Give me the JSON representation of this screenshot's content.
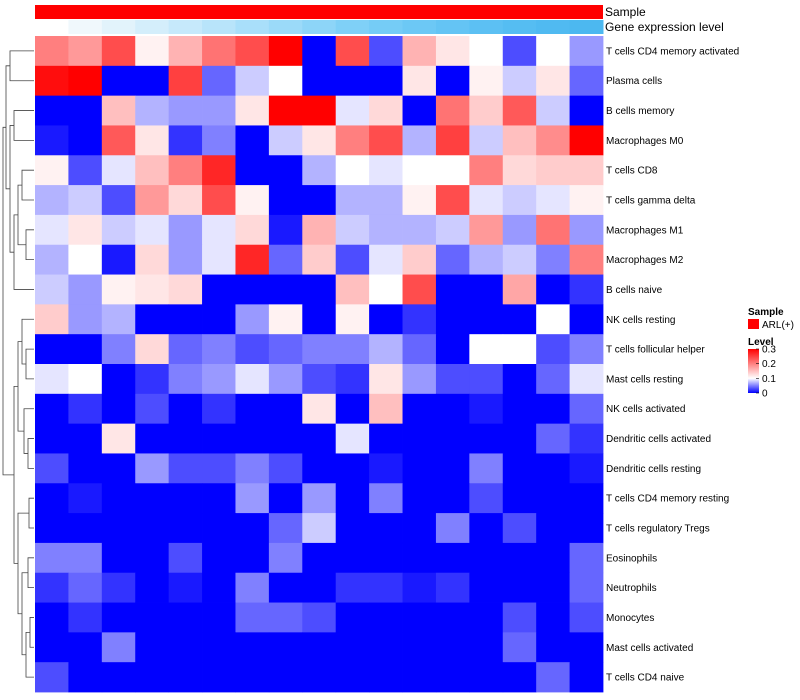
{
  "chart_data": {
    "type": "heatmap",
    "annotation_tracks": [
      {
        "label": "Sample",
        "color": "#ff0000"
      },
      {
        "label": "Gene expression level",
        "colors": [
          "#ffffff",
          "#f0f8fc",
          "#e2f3fb",
          "#d4eefb",
          "#c6e9fb",
          "#b8e4fa",
          "#a9dffa",
          "#9bdaf9",
          "#8dd5f8",
          "#7fd0f7",
          "#75ccf6",
          "#6cc8f5",
          "#64c4f4",
          "#5cc0f3",
          "#55bdf2",
          "#50baf1",
          "#4cb8f0"
        ]
      }
    ],
    "rows": [
      "T cells CD4 memory activated",
      "Plasma cells",
      "B cells memory",
      "Macrophages M0",
      "T cells CD8",
      "T cells gamma delta",
      "Macrophages M1",
      "Macrophages M2",
      "B cells naive",
      "NK cells resting",
      "T cells follicular helper",
      "Mast cells resting",
      "NK cells activated",
      "Dendritic cells activated",
      "Dendritic cells resting",
      "T cells CD4 memory resting",
      "T cells regulatory  Tregs",
      "Eosinophils",
      "Neutrophils",
      "Monocytes",
      "Mast cells activated",
      "T cells CD4 naive"
    ],
    "values": [
      [
        0.2,
        0.18,
        0.24,
        0.11,
        0.16,
        0.21,
        0.24,
        0.3,
        0.0,
        0.24,
        0.03,
        0.16,
        0.12,
        0.1,
        0.03,
        0.1,
        0.06
      ],
      [
        0.29,
        0.3,
        0.0,
        0.0,
        0.25,
        0.04,
        0.08,
        0.1,
        0.0,
        0.0,
        0.0,
        0.12,
        0.0,
        0.11,
        0.08,
        0.12,
        0.04
      ],
      [
        0.0,
        0.0,
        0.15,
        0.07,
        0.06,
        0.06,
        0.12,
        0.3,
        0.3,
        0.09,
        0.13,
        0.0,
        0.21,
        0.14,
        0.23,
        0.08,
        0.0
      ],
      [
        0.01,
        0.0,
        0.23,
        0.12,
        0.02,
        0.05,
        0.0,
        0.08,
        0.12,
        0.2,
        0.24,
        0.07,
        0.25,
        0.08,
        0.15,
        0.19,
        0.3
      ],
      [
        0.11,
        0.03,
        0.09,
        0.15,
        0.2,
        0.27,
        0.0,
        0.0,
        0.07,
        0.1,
        0.09,
        0.1,
        0.1,
        0.2,
        0.13,
        0.14,
        0.14
      ],
      [
        0.07,
        0.08,
        0.03,
        0.18,
        0.13,
        0.24,
        0.11,
        0.0,
        0.0,
        0.07,
        0.07,
        0.11,
        0.24,
        0.09,
        0.08,
        0.09,
        0.11
      ],
      [
        0.09,
        0.12,
        0.08,
        0.09,
        0.06,
        0.09,
        0.13,
        0.01,
        0.16,
        0.08,
        0.07,
        0.07,
        0.08,
        0.18,
        0.06,
        0.21,
        0.06
      ],
      [
        0.07,
        0.1,
        0.01,
        0.13,
        0.06,
        0.09,
        0.27,
        0.04,
        0.14,
        0.03,
        0.09,
        0.14,
        0.04,
        0.07,
        0.08,
        0.05,
        0.2
      ],
      [
        0.08,
        0.06,
        0.11,
        0.12,
        0.13,
        0.0,
        0.0,
        0.0,
        0.0,
        0.15,
        0.1,
        0.24,
        0.0,
        0.0,
        0.17,
        0.0,
        0.02
      ],
      [
        0.14,
        0.06,
        0.07,
        0.0,
        0.0,
        0.0,
        0.06,
        0.11,
        0.0,
        0.11,
        0.0,
        0.02,
        0.0,
        0.0,
        0.0,
        0.1,
        0.0
      ],
      [
        0.0,
        0.0,
        0.05,
        0.13,
        0.04,
        0.05,
        0.03,
        0.04,
        0.05,
        0.05,
        0.07,
        0.04,
        0.0,
        0.1,
        0.1,
        0.03,
        0.05
      ],
      [
        0.09,
        0.1,
        0.0,
        0.02,
        0.05,
        0.06,
        0.09,
        0.06,
        0.03,
        0.02,
        0.12,
        0.06,
        0.03,
        0.03,
        0.0,
        0.04,
        0.09
      ],
      [
        0.0,
        0.02,
        0.0,
        0.03,
        0.0,
        0.02,
        0.0,
        0.0,
        0.12,
        0.0,
        0.15,
        0.0,
        0.0,
        0.01,
        0.0,
        0.0,
        0.04
      ],
      [
        0.0,
        0.0,
        0.12,
        0.0,
        0.0,
        0.0,
        0.0,
        0.0,
        0.0,
        0.09,
        0.0,
        0.0,
        0.0,
        0.0,
        0.0,
        0.04,
        0.02
      ],
      [
        0.03,
        0.0,
        0.0,
        0.06,
        0.03,
        0.03,
        0.05,
        0.03,
        0.0,
        0.0,
        0.01,
        0.0,
        0.0,
        0.05,
        0.0,
        0.0,
        0.01
      ],
      [
        0.0,
        0.01,
        0.0,
        0.0,
        0.0,
        0.0,
        0.06,
        0.0,
        0.06,
        0.0,
        0.05,
        0.0,
        0.0,
        0.03,
        0.0,
        0.0,
        0.0
      ],
      [
        0.0,
        0.0,
        0.0,
        0.0,
        0.0,
        0.0,
        0.0,
        0.04,
        0.08,
        0.0,
        0.0,
        0.0,
        0.05,
        0.0,
        0.03,
        0.0,
        0.0
      ],
      [
        0.05,
        0.05,
        0.0,
        0.0,
        0.03,
        0.0,
        0.0,
        0.05,
        0.0,
        0.0,
        0.0,
        0.0,
        0.0,
        0.0,
        0.0,
        0.0,
        0.04
      ],
      [
        0.02,
        0.04,
        0.02,
        0.0,
        0.01,
        0.0,
        0.05,
        0.0,
        0.0,
        0.02,
        0.02,
        0.01,
        0.02,
        0.0,
        0.0,
        0.0,
        0.04
      ],
      [
        0.0,
        0.02,
        0.0,
        0.0,
        0.0,
        0.0,
        0.04,
        0.04,
        0.03,
        0.0,
        0.0,
        0.0,
        0.0,
        0.0,
        0.03,
        0.0,
        0.03
      ],
      [
        0.0,
        0.0,
        0.05,
        0.0,
        0.0,
        0.0,
        0.0,
        0.0,
        0.0,
        0.0,
        0.0,
        0.0,
        0.0,
        0.0,
        0.04,
        0.0,
        0.0
      ],
      [
        0.03,
        0.0,
        0.0,
        0.0,
        0.0,
        0.0,
        0.0,
        0.0,
        0.0,
        0.0,
        0.0,
        0.0,
        0.0,
        0.0,
        0.0,
        0.04,
        0.0
      ]
    ],
    "color_scale": {
      "min": 0,
      "mid": 0.1,
      "max": 0.3,
      "colors": [
        "#0000ff",
        "#ffffff",
        "#ff0000"
      ]
    },
    "legend": {
      "sample_title": "Sample",
      "sample_entry": "ARL(+)",
      "sample_color": "#ff0000",
      "level_title": "Level",
      "level_ticks": [
        {
          "value": 0.3,
          "label": "0.3"
        },
        {
          "value": 0.2,
          "label": "0.2"
        },
        {
          "value": 0.1,
          "label": "0.1"
        },
        {
          "value": 0,
          "label": "0"
        }
      ]
    }
  }
}
